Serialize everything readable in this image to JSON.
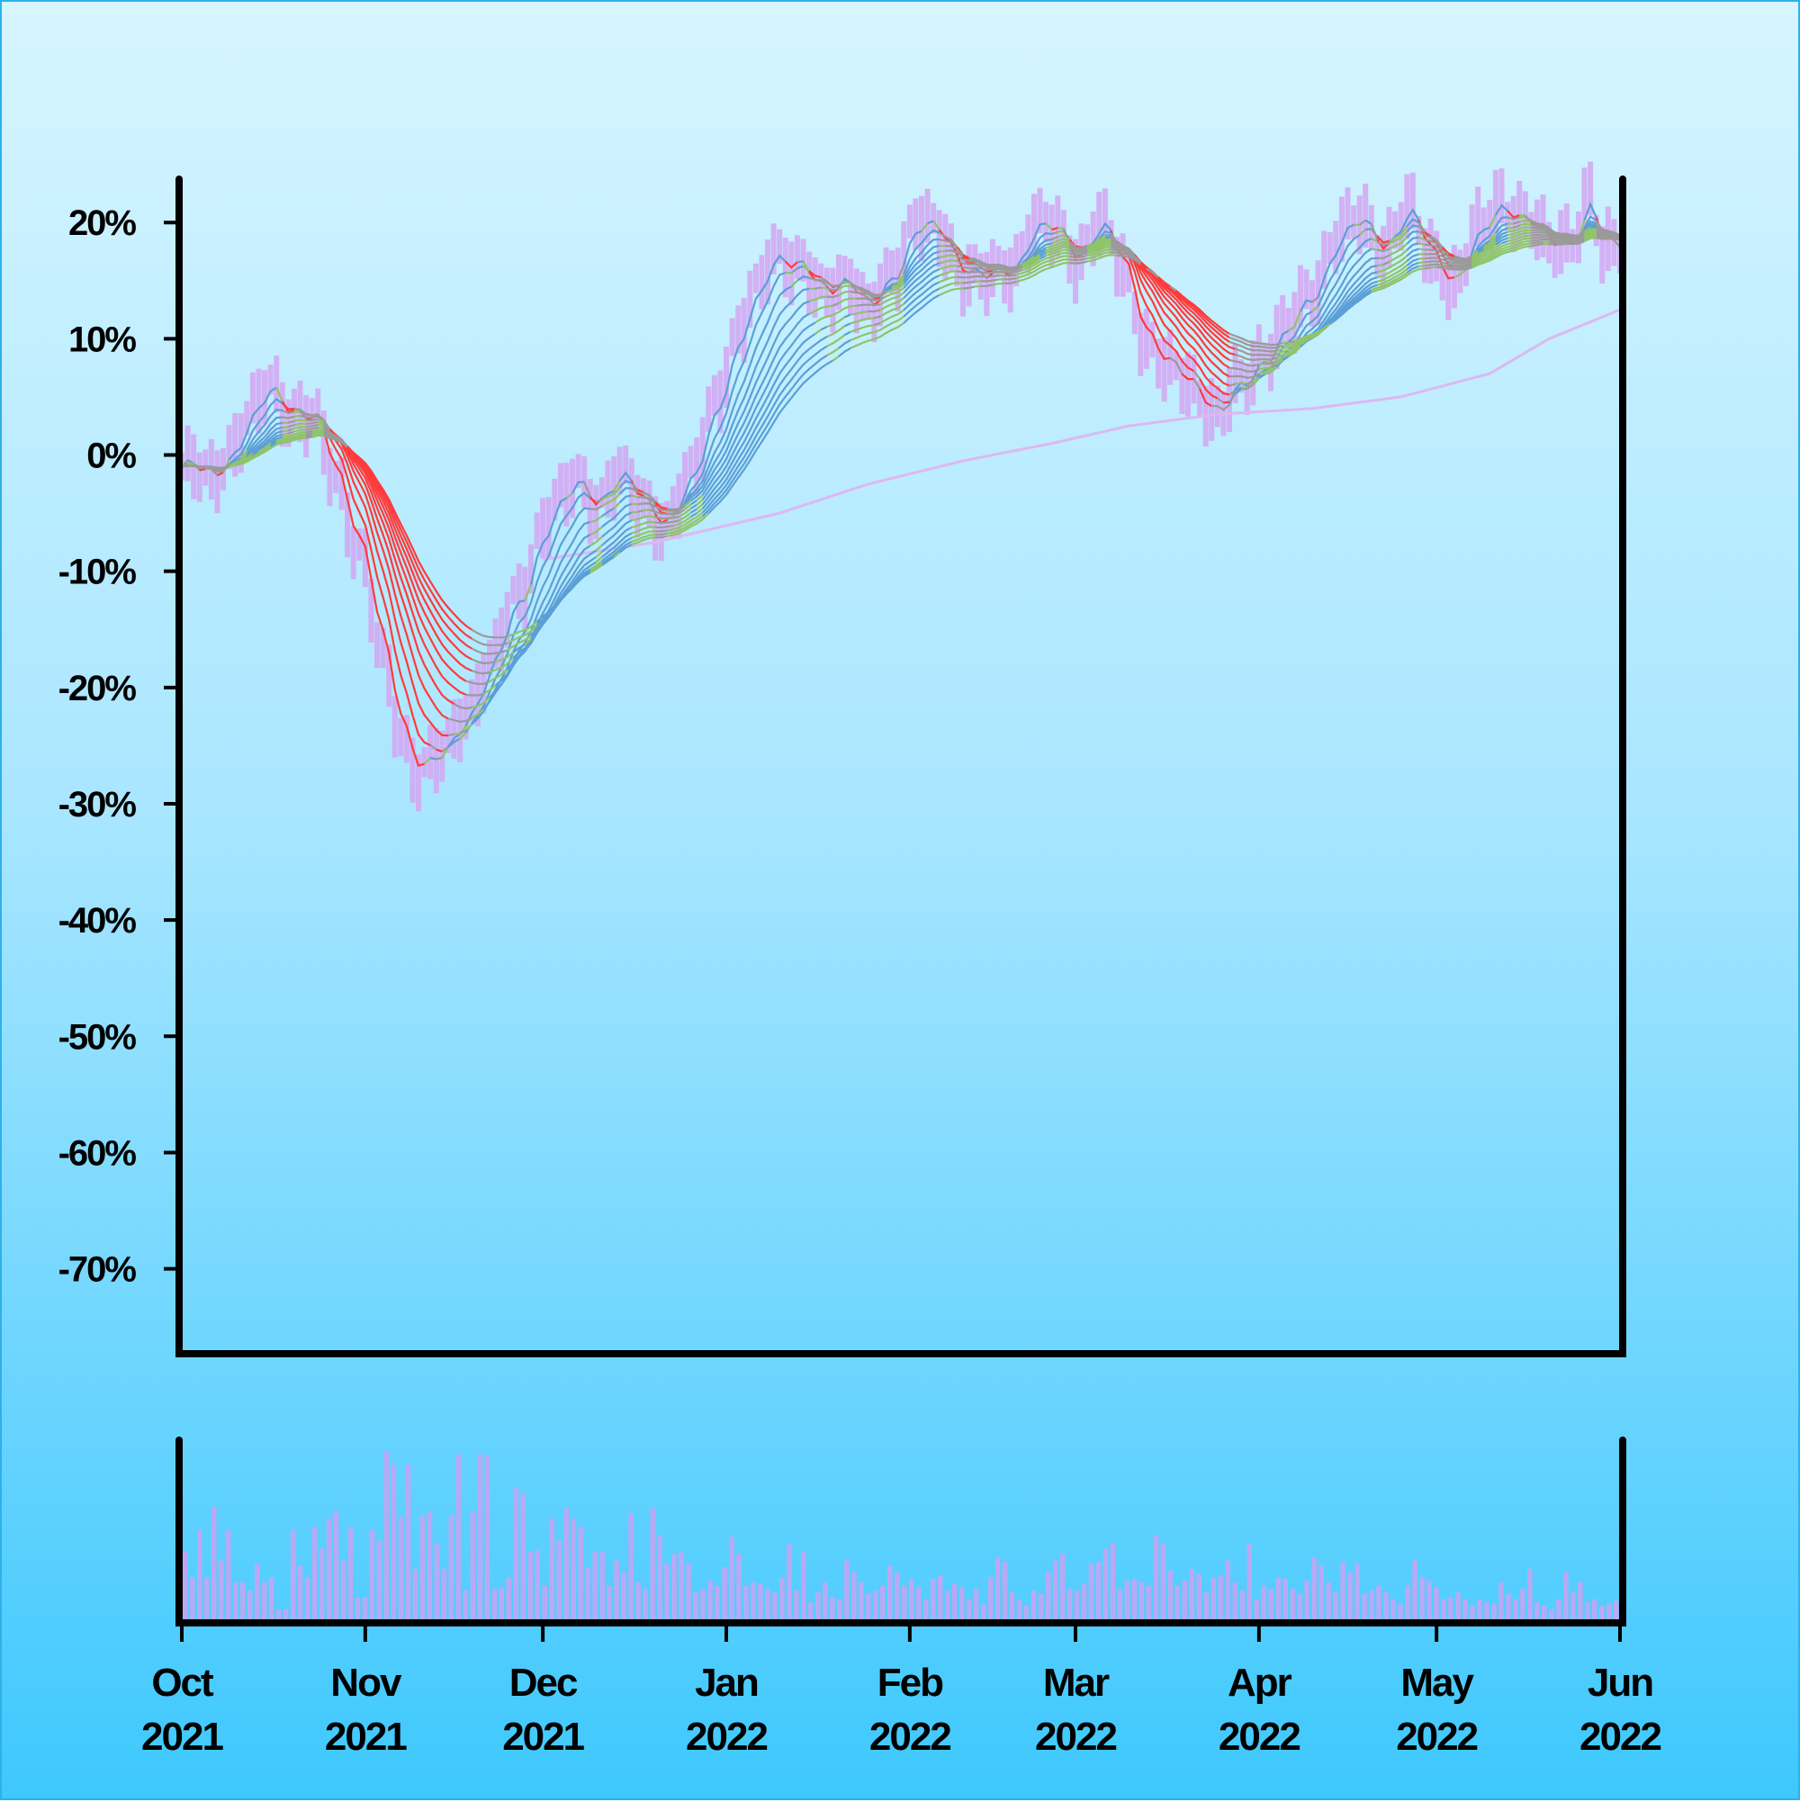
{
  "chart_data": {
    "type": "line",
    "title": "",
    "xlabel": "",
    "ylabel": "",
    "y_unit": "%",
    "ylim": [
      -77,
      23.5
    ],
    "xlim": [
      "2021-10-01",
      "2022-06-01"
    ],
    "grid": false,
    "legend": "none",
    "y_ticks": [
      {
        "value": 20,
        "label": "20%"
      },
      {
        "value": 10,
        "label": "10%"
      },
      {
        "value": 0,
        "label": "0%"
      },
      {
        "value": -10,
        "label": "-10%"
      },
      {
        "value": -20,
        "label": "-20%"
      },
      {
        "value": -30,
        "label": "-30%"
      },
      {
        "value": -40,
        "label": "-40%"
      },
      {
        "value": -50,
        "label": "-50%"
      },
      {
        "value": -60,
        "label": "-60%"
      },
      {
        "value": -70,
        "label": "-70%"
      }
    ],
    "x_ticks": [
      {
        "date": "2021-10-01",
        "month": "Oct",
        "year": "2021"
      },
      {
        "date": "2021-11-01",
        "month": "Nov",
        "year": "2021"
      },
      {
        "date": "2021-12-01",
        "month": "Dec",
        "year": "2021"
      },
      {
        "date": "2022-01-01",
        "month": "Jan",
        "year": "2022"
      },
      {
        "date": "2022-02-01",
        "month": "Feb",
        "year": "2022"
      },
      {
        "date": "2022-03-01",
        "month": "Mar",
        "year": "2022"
      },
      {
        "date": "2022-04-01",
        "month": "Apr",
        "year": "2022"
      },
      {
        "date": "2022-05-01",
        "month": "May",
        "year": "2022"
      },
      {
        "date": "2022-06-01",
        "month": "Jun",
        "year": "2022"
      }
    ],
    "price_series": {
      "kind": "daily range bars",
      "values": [
        {
          "x": "2021-10-01",
          "y": -1.0
        },
        {
          "x": "2021-10-06",
          "y": -2.0
        },
        {
          "x": "2021-10-09",
          "y": 0.5
        },
        {
          "x": "2021-10-13",
          "y": 3.5
        },
        {
          "x": "2021-10-16",
          "y": 6.0
        },
        {
          "x": "2021-10-19",
          "y": 4.0
        },
        {
          "x": "2021-10-23",
          "y": 3.0
        },
        {
          "x": "2021-10-27",
          "y": -2.0
        },
        {
          "x": "2021-10-31",
          "y": -8.0
        },
        {
          "x": "2021-11-04",
          "y": -18.0
        },
        {
          "x": "2021-11-07",
          "y": -24.0
        },
        {
          "x": "2021-11-10",
          "y": -27.0
        },
        {
          "x": "2021-11-14",
          "y": -26.0
        },
        {
          "x": "2021-11-18",
          "y": -22.0
        },
        {
          "x": "2021-11-22",
          "y": -18.0
        },
        {
          "x": "2021-11-27",
          "y": -12.0
        },
        {
          "x": "2021-12-01",
          "y": -6.0
        },
        {
          "x": "2021-12-04",
          "y": -4.0
        },
        {
          "x": "2021-12-07",
          "y": -2.0
        },
        {
          "x": "2021-12-10",
          "y": -4.0
        },
        {
          "x": "2021-12-14",
          "y": -2.0
        },
        {
          "x": "2021-12-18",
          "y": -4.0
        },
        {
          "x": "2021-12-22",
          "y": -6.0
        },
        {
          "x": "2021-12-26",
          "y": -2.0
        },
        {
          "x": "2021-12-30",
          "y": 5.0
        },
        {
          "x": "2022-01-03",
          "y": 10.0
        },
        {
          "x": "2022-01-06",
          "y": 14.0
        },
        {
          "x": "2022-01-09",
          "y": 18.0
        },
        {
          "x": "2022-01-13",
          "y": 16.0
        },
        {
          "x": "2022-01-17",
          "y": 14.0
        },
        {
          "x": "2022-01-21",
          "y": 15.5
        },
        {
          "x": "2022-01-25",
          "y": 12.0
        },
        {
          "x": "2022-01-29",
          "y": 16.0
        },
        {
          "x": "2022-02-02",
          "y": 20.0
        },
        {
          "x": "2022-02-06",
          "y": 19.0
        },
        {
          "x": "2022-02-10",
          "y": 16.0
        },
        {
          "x": "2022-02-14",
          "y": 15.0
        },
        {
          "x": "2022-02-18",
          "y": 16.0
        },
        {
          "x": "2022-02-22",
          "y": 20.0
        },
        {
          "x": "2022-02-26",
          "y": 19.0
        },
        {
          "x": "2022-03-01",
          "y": 17.0
        },
        {
          "x": "2022-03-05",
          "y": 20.0
        },
        {
          "x": "2022-03-09",
          "y": 16.0
        },
        {
          "x": "2022-03-13",
          "y": 10.0
        },
        {
          "x": "2022-03-17",
          "y": 7.0
        },
        {
          "x": "2022-03-21",
          "y": 6.0
        },
        {
          "x": "2022-03-25",
          "y": 3.5
        },
        {
          "x": "2022-03-29",
          "y": 6.0
        },
        {
          "x": "2022-04-02",
          "y": 9.0
        },
        {
          "x": "2022-04-06",
          "y": 11.0
        },
        {
          "x": "2022-04-10",
          "y": 14.0
        },
        {
          "x": "2022-04-14",
          "y": 19.0
        },
        {
          "x": "2022-04-18",
          "y": 20.0
        },
        {
          "x": "2022-04-22",
          "y": 18.0
        },
        {
          "x": "2022-04-26",
          "y": 21.0
        },
        {
          "x": "2022-04-30",
          "y": 17.0
        },
        {
          "x": "2022-05-04",
          "y": 15.0
        },
        {
          "x": "2022-05-08",
          "y": 19.0
        },
        {
          "x": "2022-05-12",
          "y": 22.0
        },
        {
          "x": "2022-05-16",
          "y": 20.0
        },
        {
          "x": "2022-05-20",
          "y": 18.0
        },
        {
          "x": "2022-05-24",
          "y": 19.0
        },
        {
          "x": "2022-05-27",
          "y": 22.0
        },
        {
          "x": "2022-05-29",
          "y": 17.0
        },
        {
          "x": "2022-06-01",
          "y": 18.5
        }
      ]
    },
    "moving_average_ribbon": {
      "count": 12,
      "color_up": "#5b9fd6",
      "color_down": "#ff3b3b",
      "color_converging": "#8fc46a",
      "color_neutral": "#9a9a9a"
    },
    "long_moving_average": {
      "color": "#dcb8f2",
      "values": [
        {
          "x": "2021-12-01",
          "y": -9.0
        },
        {
          "x": "2021-12-20",
          "y": -7.5
        },
        {
          "x": "2022-01-10",
          "y": -5.0
        },
        {
          "x": "2022-01-25",
          "y": -2.5
        },
        {
          "x": "2022-02-10",
          "y": -0.5
        },
        {
          "x": "2022-02-25",
          "y": 1.0
        },
        {
          "x": "2022-03-10",
          "y": 2.5
        },
        {
          "x": "2022-03-25",
          "y": 3.5
        },
        {
          "x": "2022-04-10",
          "y": 4.0
        },
        {
          "x": "2022-04-25",
          "y": 5.0
        },
        {
          "x": "2022-05-10",
          "y": 7.0
        },
        {
          "x": "2022-05-20",
          "y": 10.0
        },
        {
          "x": "2022-06-01",
          "y": 12.5
        }
      ]
    },
    "volume": {
      "color": "#b9a9f5",
      "relative_levels": [
        0.4,
        0.25,
        0.53,
        0.25,
        0.67,
        0.35,
        0.53,
        0.22,
        0.22,
        0.17,
        0.33,
        0.22,
        0.25,
        0.06,
        0.06,
        0.53,
        0.32,
        0.25,
        0.55,
        0.42,
        0.6,
        0.64,
        0.35,
        0.55,
        0.13,
        0.13,
        0.53,
        0.47,
        1.0,
        0.92,
        0.61,
        0.92,
        0.3,
        0.62,
        0.64,
        0.45,
        0.3,
        0.62,
        0.98,
        0.17,
        0.64,
        0.98,
        0.97,
        0.18,
        0.19,
        0.25,
        0.78,
        0.75,
        0.4,
        0.41,
        0.2,
        0.6,
        0.47,
        0.66,
        0.6,
        0.55,
        0.31,
        0.4,
        0.4,
        0.2,
        0.35,
        0.28,
        0.63,
        0.22,
        0.18,
        0.66,
        0.5,
        0.33,
        0.39,
        0.4,
        0.33,
        0.16,
        0.18,
        0.23,
        0.2,
        0.31,
        0.49,
        0.39,
        0.2,
        0.22,
        0.21,
        0.18,
        0.16,
        0.25,
        0.45,
        0.17,
        0.4,
        0.1,
        0.16,
        0.22,
        0.13,
        0.12,
        0.35,
        0.28,
        0.22,
        0.15,
        0.17,
        0.2,
        0.32,
        0.28,
        0.2,
        0.24,
        0.19,
        0.12,
        0.24,
        0.26,
        0.17,
        0.21,
        0.19,
        0.12,
        0.18,
        0.09,
        0.25,
        0.37,
        0.34,
        0.16,
        0.12,
        0.08,
        0.17,
        0.15,
        0.28,
        0.35,
        0.39,
        0.18,
        0.17,
        0.21,
        0.33,
        0.34,
        0.42,
        0.45,
        0.18,
        0.23,
        0.24,
        0.22,
        0.2,
        0.5,
        0.45,
        0.29,
        0.2,
        0.23,
        0.3,
        0.27,
        0.16,
        0.25,
        0.26,
        0.35,
        0.22,
        0.17,
        0.45,
        0.12,
        0.2,
        0.18,
        0.25,
        0.24,
        0.18,
        0.15,
        0.23,
        0.37,
        0.32,
        0.22,
        0.16,
        0.34,
        0.28,
        0.33,
        0.15,
        0.17,
        0.2,
        0.16,
        0.12,
        0.09,
        0.2,
        0.35,
        0.25,
        0.23,
        0.19,
        0.12,
        0.13,
        0.16,
        0.12,
        0.08,
        0.12,
        0.1,
        0.09,
        0.22,
        0.15,
        0.12,
        0.18,
        0.3,
        0.1,
        0.08,
        0.06,
        0.12,
        0.28,
        0.16,
        0.22,
        0.1,
        0.12,
        0.08,
        0.09,
        0.11
      ]
    }
  }
}
